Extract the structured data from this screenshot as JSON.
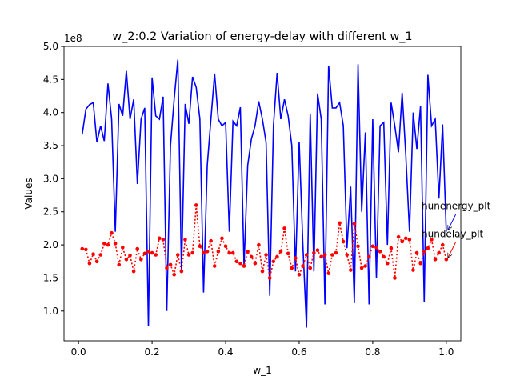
{
  "chart_data": {
    "type": "line",
    "title": "w_2:0.2 Variation of energy-delay with different w_1",
    "xlabel": "w_1",
    "ylabel": "Values",
    "y_offset_label": "1e8",
    "x": [
      0.01,
      0.02,
      0.03,
      0.04,
      0.05,
      0.06,
      0.07,
      0.08,
      0.09,
      0.1,
      0.11,
      0.12,
      0.13,
      0.14,
      0.15,
      0.16,
      0.17,
      0.18,
      0.19,
      0.2,
      0.21,
      0.22,
      0.23,
      0.24,
      0.25,
      0.26,
      0.27,
      0.28,
      0.29,
      0.3,
      0.31,
      0.32,
      0.33,
      0.34,
      0.35,
      0.36,
      0.37,
      0.38,
      0.39,
      0.4,
      0.41,
      0.42,
      0.43,
      0.44,
      0.45,
      0.46,
      0.47,
      0.48,
      0.49,
      0.5,
      0.51,
      0.52,
      0.53,
      0.54,
      0.55,
      0.56,
      0.57,
      0.58,
      0.59,
      0.6,
      0.61,
      0.62,
      0.63,
      0.64,
      0.65,
      0.66,
      0.67,
      0.68,
      0.69,
      0.7,
      0.71,
      0.72,
      0.73,
      0.74,
      0.75,
      0.76,
      0.77,
      0.78,
      0.79,
      0.8,
      0.81,
      0.82,
      0.83,
      0.84,
      0.85,
      0.86,
      0.87,
      0.88,
      0.89,
      0.9,
      0.91,
      0.92,
      0.93,
      0.94,
      0.95,
      0.96,
      0.97,
      0.98,
      0.99,
      1.0
    ],
    "series": [
      {
        "color": "#0000ff",
        "style": "solid",
        "marker": false,
        "values": [
          3.67,
          4.05,
          4.12,
          4.15,
          3.55,
          3.8,
          3.57,
          4.44,
          3.9,
          2.2,
          4.13,
          3.95,
          4.63,
          3.9,
          4.2,
          2.92,
          3.9,
          4.07,
          0.77,
          4.53,
          3.95,
          3.9,
          4.24,
          1.0,
          3.5,
          4.2,
          4.8,
          1.58,
          4.13,
          3.83,
          4.54,
          4.38,
          3.9,
          1.28,
          3.2,
          3.9,
          4.59,
          3.9,
          3.8,
          3.85,
          2.2,
          3.87,
          3.8,
          4.08,
          1.68,
          3.2,
          3.6,
          3.8,
          4.17,
          3.9,
          3.55,
          1.23,
          3.8,
          4.6,
          3.9,
          4.2,
          3.95,
          3.5,
          1.6,
          3.56,
          2.0,
          0.75,
          3.98,
          1.6,
          4.29,
          3.9,
          1.1,
          4.71,
          4.07,
          4.07,
          4.15,
          3.8,
          1.95,
          2.88,
          1.12,
          4.73,
          2.5,
          3.7,
          1.1,
          3.9,
          1.5,
          3.8,
          3.85,
          2.0,
          4.15,
          3.8,
          3.4,
          4.3,
          3.35,
          2.2,
          4.0,
          3.45,
          4.1,
          1.14,
          4.57,
          3.8,
          3.9,
          2.7,
          3.82,
          2.2
        ]
      },
      {
        "color": "#ff0000",
        "style": "dotted",
        "marker": true,
        "values": [
          1.94,
          1.93,
          1.72,
          1.86,
          1.75,
          1.85,
          2.02,
          2.0,
          2.18,
          2.02,
          1.7,
          1.96,
          1.78,
          1.84,
          1.6,
          1.94,
          1.78,
          1.87,
          1.9,
          1.88,
          1.85,
          2.1,
          2.08,
          1.65,
          1.7,
          1.55,
          1.85,
          1.6,
          2.08,
          1.85,
          1.88,
          2.6,
          1.98,
          1.88,
          1.9,
          2.06,
          1.68,
          1.9,
          2.1,
          1.98,
          1.88,
          1.88,
          1.75,
          1.72,
          1.68,
          1.9,
          1.82,
          1.72,
          2.0,
          1.6,
          1.85,
          1.5,
          1.75,
          1.82,
          1.9,
          2.25,
          1.87,
          1.65,
          1.8,
          1.55,
          1.68,
          1.85,
          1.65,
          1.88,
          1.92,
          1.82,
          1.85,
          1.57,
          1.85,
          1.88,
          2.33,
          2.05,
          1.85,
          1.62,
          2.32,
          1.98,
          1.65,
          1.68,
          1.82,
          1.98,
          1.96,
          1.9,
          1.82,
          1.72,
          1.95,
          1.5,
          2.12,
          2.05,
          2.1,
          2.08,
          1.62,
          1.88,
          1.72,
          1.9,
          1.95,
          2.08,
          1.78,
          1.88,
          2.0,
          1.78
        ]
      }
    ],
    "annotations": [
      {
        "text": "hunenergy_plt",
        "series": 0
      },
      {
        "text": "hundelay_plt",
        "series": 1
      }
    ],
    "xlim": [
      -0.0395,
      1.0395
    ],
    "xticks": [
      {
        "value": 0,
        "label": "0.0"
      },
      0.2,
      0.4,
      0.6,
      0.8,
      {
        "value": 1,
        "label": "1.0"
      }
    ],
    "ylim": [
      0.55,
      5.0
    ],
    "yticks": [
      {
        "value": 1,
        "label": "1.0"
      },
      1.5,
      {
        "value": 2,
        "label": "2.0"
      },
      2.5,
      {
        "value": 3,
        "label": "3.0"
      },
      3.5,
      {
        "value": 4,
        "label": "4.0"
      },
      4.5,
      {
        "value": 5,
        "label": "5.0"
      }
    ]
  }
}
